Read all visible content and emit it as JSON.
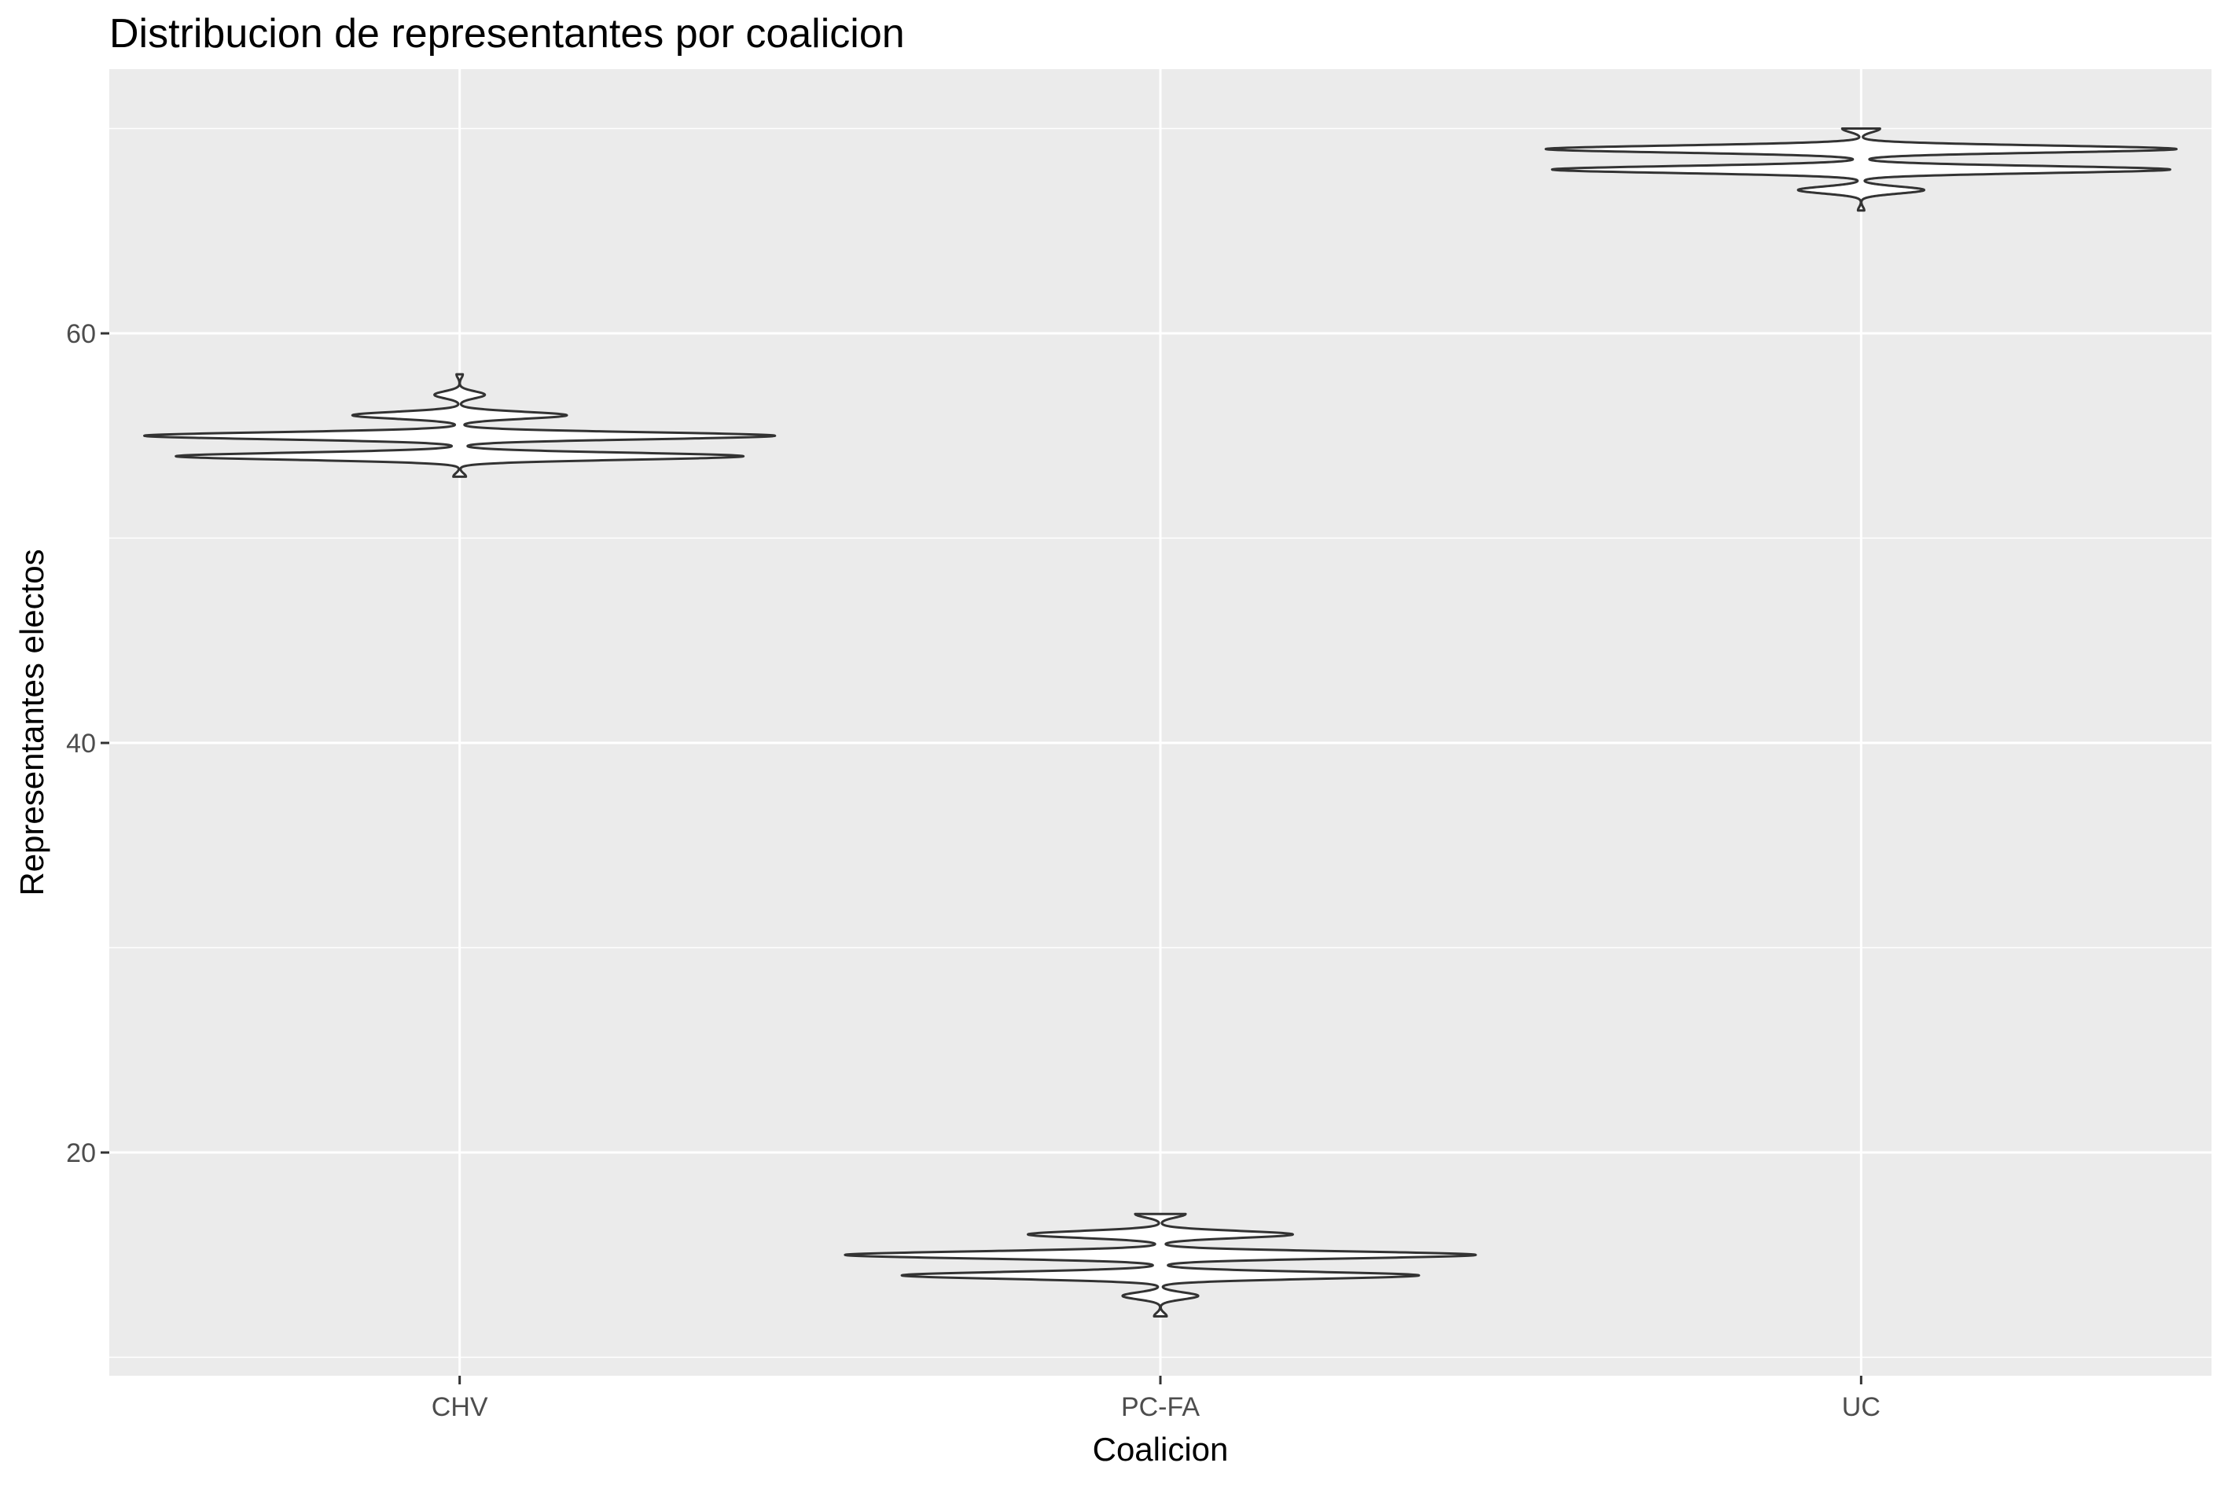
{
  "chart_data": {
    "type": "violin",
    "title": "Distribucion de representantes por coalicion",
    "xlabel": "Coalicion",
    "ylabel": "Representantes electos",
    "categories": [
      "CHV",
      "PC-FA",
      "UC"
    ],
    "ylim": [
      9.1,
      72.9
    ],
    "yticks": [
      20,
      40,
      60
    ],
    "grid": true,
    "colors": {
      "panel": "#ebebeb",
      "grid": "#ffffff",
      "outline": "#333333",
      "tick_label": "#4d4d4d"
    },
    "series": [
      {
        "category": "CHV",
        "density": [
          [
            53,
            0.01
          ],
          [
            54,
            0.45
          ],
          [
            55,
            0.5
          ],
          [
            56,
            0.17
          ],
          [
            57,
            0.04
          ],
          [
            58,
            0.005
          ]
        ]
      },
      {
        "category": "PC-FA",
        "density": [
          [
            12,
            0.01
          ],
          [
            13,
            0.06
          ],
          [
            14,
            0.41
          ],
          [
            15,
            0.5
          ],
          [
            16,
            0.21
          ],
          [
            17,
            0.04
          ]
        ]
      },
      {
        "category": "UC",
        "density": [
          [
            66,
            0.005
          ],
          [
            67,
            0.1
          ],
          [
            68,
            0.49
          ],
          [
            69,
            0.5
          ],
          [
            70,
            0.03
          ]
        ]
      }
    ]
  }
}
